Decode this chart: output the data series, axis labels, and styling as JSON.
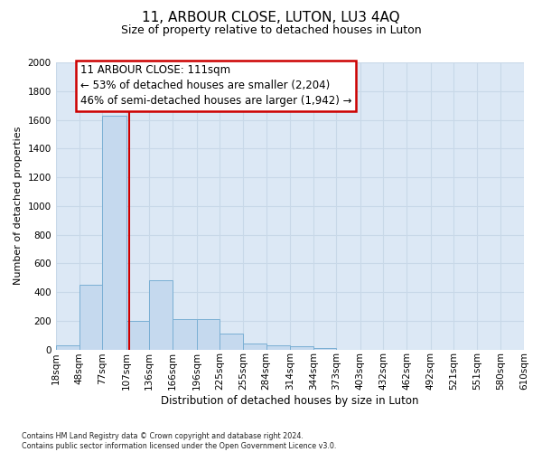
{
  "title": "11, ARBOUR CLOSE, LUTON, LU3 4AQ",
  "subtitle": "Size of property relative to detached houses in Luton",
  "xlabel": "Distribution of detached houses by size in Luton",
  "ylabel": "Number of detached properties",
  "footnote": "Contains HM Land Registry data © Crown copyright and database right 2024.\nContains public sector information licensed under the Open Government Licence v3.0.",
  "bin_edges": [
    18,
    48,
    77,
    107,
    136,
    166,
    196,
    225,
    255,
    284,
    314,
    344,
    373,
    403,
    432,
    462,
    492,
    521,
    551,
    580,
    610
  ],
  "bar_heights": [
    30,
    450,
    1630,
    200,
    480,
    210,
    210,
    110,
    40,
    30,
    20,
    10,
    0,
    0,
    0,
    0,
    0,
    0,
    0,
    0
  ],
  "bar_fill_color": "#c5d9ee",
  "bar_edge_color": "#7aafd4",
  "grid_color": "#c8d8e8",
  "plot_bg_color": "#dce8f5",
  "vline_x": 111,
  "vline_color": "#cc0000",
  "annotation_line1": "11 ARBOUR CLOSE: 111sqm",
  "annotation_line2": "← 53% of detached houses are smaller (2,204)",
  "annotation_line3": "46% of semi-detached houses are larger (1,942) →",
  "annot_box_facecolor": "#ffffff",
  "annot_box_edgecolor": "#cc0000",
  "ylim_max": 2000,
  "yticks": [
    0,
    200,
    400,
    600,
    800,
    1000,
    1200,
    1400,
    1600,
    1800,
    2000
  ],
  "title_fontsize": 11,
  "subtitle_fontsize": 9,
  "axis_label_fontsize": 8,
  "tick_fontsize": 7.5,
  "annot_fontsize": 8.5
}
